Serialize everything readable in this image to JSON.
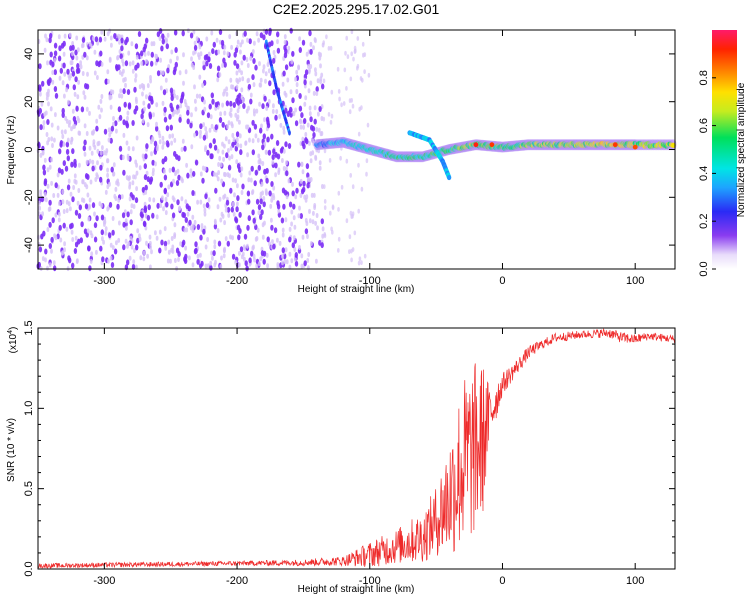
{
  "title": "C2E2.2025.295.17.02.G01",
  "colors": {
    "snr_line": "#ee2a2a",
    "axis": "#000000",
    "spectrogram_scatter": "#7b2cf5",
    "spectrogram_light": "#d6c2f7"
  },
  "colorbar": {
    "label": "Normalized spectral amplitude",
    "range": [
      0,
      1
    ],
    "ticks": [
      "0.0",
      "0.2",
      "0.4",
      "0.6",
      "0.8"
    ],
    "tick_values": [
      0.0,
      0.2,
      0.4,
      0.6,
      0.8
    ]
  },
  "chart_data": [
    {
      "type": "heatmap",
      "xlabel": "Height of straight line (km)",
      "ylabel": "Frequency (Hz)",
      "xlim": [
        -350,
        130
      ],
      "ylim": [
        -50,
        50
      ],
      "x_ticks": [
        "-300",
        "-200",
        "-100",
        "0",
        "100"
      ],
      "x_tick_values": [
        -300,
        -200,
        -100,
        0,
        100
      ],
      "y_ticks": [
        "40",
        "20",
        "0",
        "-20",
        "-40"
      ],
      "y_tick_values": [
        40,
        20,
        0,
        -20,
        -40
      ],
      "noise_region_x": [
        -350,
        -135
      ],
      "signal_ridge": {
        "x": [
          -140,
          -120,
          -100,
          -80,
          -60,
          -40,
          -20,
          0,
          20,
          40,
          60,
          80,
          100,
          130
        ],
        "frequency": [
          2,
          3,
          0,
          -3,
          -3,
          0,
          2,
          1,
          2,
          2,
          2,
          2,
          2,
          2
        ],
        "amplitude": [
          0.3,
          0.4,
          0.45,
          0.5,
          0.5,
          0.55,
          0.6,
          0.55,
          0.6,
          0.6,
          0.65,
          0.7,
          0.65,
          0.65
        ]
      },
      "secondary_branch": {
        "x": [
          -70,
          -55,
          -45,
          -40
        ],
        "frequency": [
          7,
          4,
          -5,
          -12
        ]
      },
      "steep_streak": {
        "x": [
          -178,
          -170,
          -160
        ],
        "frequency": [
          45,
          25,
          6
        ]
      }
    },
    {
      "type": "line",
      "xlabel": "Height of straight line (km)",
      "ylabel": "SNR (10 * v/v)",
      "y_exponent_label": "(x10",
      "y_exponent_sup": "4",
      "xlim": [
        -350,
        130
      ],
      "ylim": [
        0,
        15000
      ],
      "x_ticks": [
        "-300",
        "-200",
        "-100",
        "0",
        "100"
      ],
      "x_tick_values": [
        -300,
        -200,
        -100,
        0,
        100
      ],
      "y_ticks": [
        "0.0",
        "0.5",
        "1.0",
        "1.5"
      ],
      "y_tick_values": [
        0,
        5000,
        10000,
        15000
      ],
      "series": [
        {
          "name": "SNR",
          "x": [
            -350,
            -300,
            -250,
            -200,
            -150,
            -120,
            -100,
            -80,
            -60,
            -50,
            -40,
            -30,
            -20,
            -15,
            -10,
            0,
            10,
            20,
            30,
            40,
            60,
            80,
            90,
            100,
            110,
            120,
            130
          ],
          "y": [
            200,
            250,
            300,
            350,
            400,
            500,
            900,
            1400,
            2000,
            3000,
            4500,
            6500,
            7500,
            8000,
            9500,
            11500,
            12500,
            13500,
            14000,
            14400,
            14600,
            14700,
            14400,
            14300,
            14500,
            14400,
            14300
          ],
          "spread": [
            150,
            150,
            150,
            150,
            200,
            300,
            800,
            1100,
            1600,
            2200,
            3800,
            5500,
            5500,
            5000,
            2000,
            700,
            500,
            400,
            300,
            300,
            250,
            300,
            350,
            300,
            250,
            250,
            250
          ]
        }
      ]
    }
  ]
}
